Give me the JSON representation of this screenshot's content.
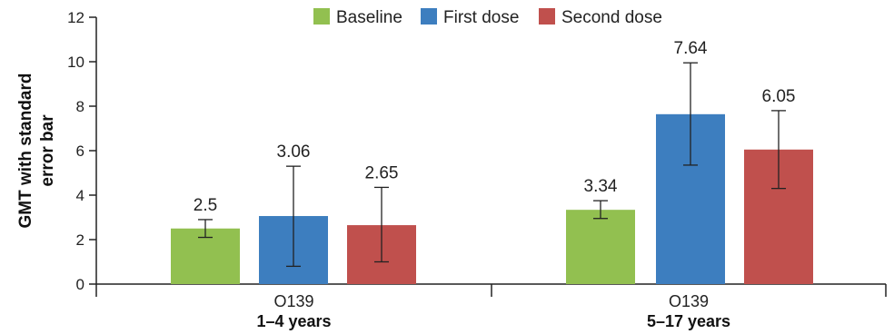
{
  "chart_data": {
    "type": "bar",
    "ylabel": [
      "GMT with standard",
      "error bar"
    ],
    "ylim": [
      0,
      12
    ],
    "yticks": [
      0,
      2,
      4,
      6,
      8,
      10,
      12
    ],
    "grid": false,
    "legend_position": "top-center",
    "groups": [
      {
        "category": "O139",
        "sublabel": "1–4 years"
      },
      {
        "category": "O139",
        "sublabel": "5–17 years"
      }
    ],
    "series": [
      {
        "name": "Baseline",
        "color": "#92c050",
        "values": [
          2.5,
          3.34
        ],
        "error_low": [
          2.1,
          2.95
        ],
        "error_high": [
          2.9,
          3.75
        ],
        "labels": [
          "2.5",
          "3.34"
        ]
      },
      {
        "name": "First dose",
        "color": "#3d7ebf",
        "values": [
          3.06,
          7.64
        ],
        "error_low": [
          0.8,
          5.35
        ],
        "error_high": [
          5.3,
          9.95
        ],
        "labels": [
          "3.06",
          "7.64"
        ]
      },
      {
        "name": "Second dose",
        "color": "#c0504d",
        "values": [
          2.65,
          6.05
        ],
        "error_low": [
          1.0,
          4.3
        ],
        "error_high": [
          4.35,
          7.8
        ],
        "labels": [
          "2.65",
          "6.05"
        ]
      }
    ]
  }
}
